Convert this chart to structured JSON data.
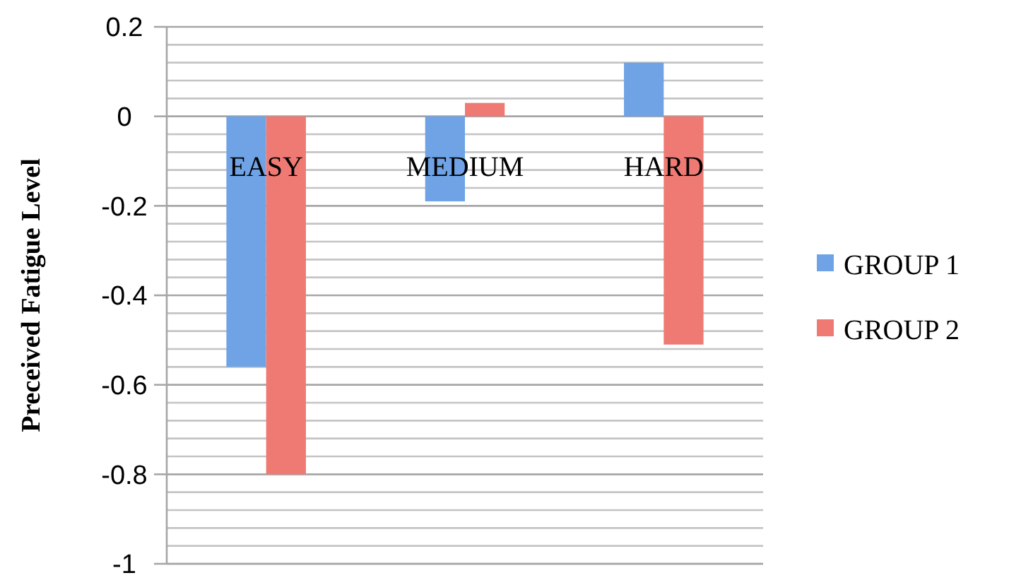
{
  "chart_data": {
    "type": "bar",
    "ylabel": "Preceived Fatigue Level",
    "categories": [
      "EASY",
      "MEDIUM",
      "HARD"
    ],
    "series": [
      {
        "name": "GROUP 1",
        "color": "#6fa3e6",
        "values": [
          -0.56,
          -0.19,
          0.12
        ]
      },
      {
        "name": "GROUP 2",
        "color": "#ee7a73",
        "values": [
          -0.8,
          0.03,
          -0.51
        ]
      }
    ],
    "ylim": [
      -1,
      0.2
    ],
    "yticks": [
      -1,
      {
        "value": -0.96,
        "label": null
      },
      {
        "value": -0.92,
        "label": null
      },
      {
        "value": -0.88,
        "label": null
      },
      {
        "value": -0.84,
        "label": null
      },
      -0.8,
      {
        "value": -0.76,
        "label": null
      },
      {
        "value": -0.72,
        "label": null
      },
      {
        "value": -0.68,
        "label": null
      },
      {
        "value": -0.64,
        "label": null
      },
      -0.6,
      {
        "value": -0.56,
        "label": null
      },
      {
        "value": -0.52,
        "label": null
      },
      {
        "value": -0.48,
        "label": null
      },
      {
        "value": -0.44,
        "label": null
      },
      -0.4,
      {
        "value": -0.36,
        "label": null
      },
      {
        "value": -0.32,
        "label": null
      },
      {
        "value": -0.28,
        "label": null
      },
      {
        "value": -0.24,
        "label": null
      },
      -0.2,
      {
        "value": -0.16,
        "label": null
      },
      {
        "value": -0.12,
        "label": null
      },
      {
        "value": -0.08,
        "label": null
      },
      {
        "value": -0.04,
        "label": null
      },
      0,
      {
        "value": 0.04,
        "label": null
      },
      {
        "value": 0.08,
        "label": null
      },
      {
        "value": 0.12,
        "label": null
      },
      {
        "value": 0.16,
        "label": null
      },
      0.2
    ],
    "grid": "y",
    "legend": "right"
  }
}
